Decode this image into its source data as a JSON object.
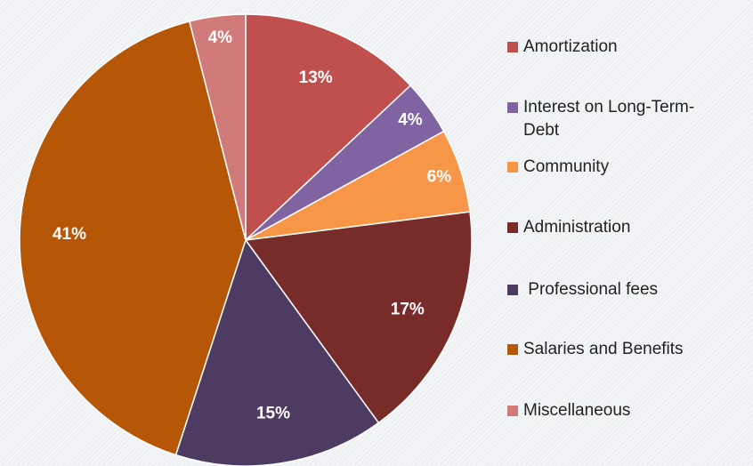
{
  "chart_data": {
    "type": "pie",
    "categories": [
      "Amortization",
      "Interest on Long-Term-Debt",
      "Community",
      "Administration",
      " Professional fees",
      "Salaries and Benefits",
      "Miscellaneous"
    ],
    "values": [
      13,
      4,
      6,
      17,
      15,
      41,
      4
    ],
    "value_labels": [
      "13%",
      "4%",
      "6%",
      "17%",
      "15%",
      "41%",
      "4%"
    ],
    "colors": [
      "#c0504d",
      "#8064a2",
      "#f79646",
      "#772c2a",
      "#4d3b62",
      "#b65708",
      "#d07b7a"
    ],
    "legend": "right"
  }
}
